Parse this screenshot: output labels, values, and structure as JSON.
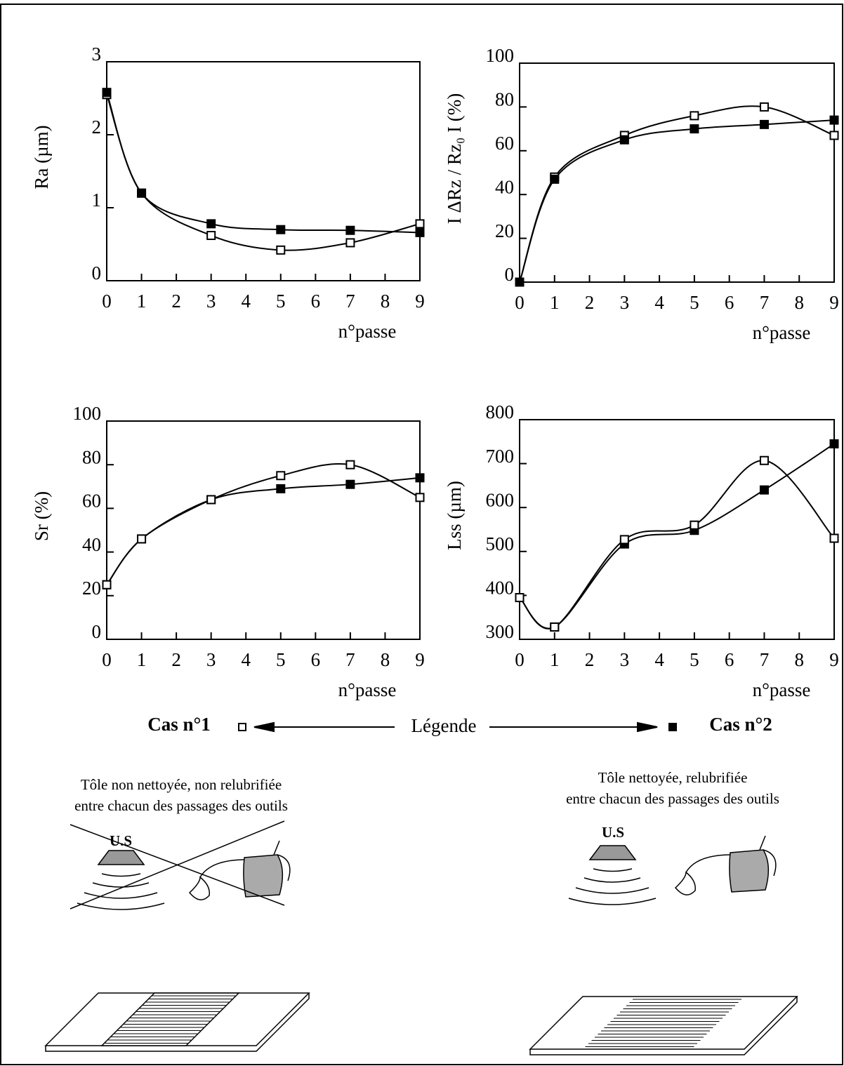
{
  "chart_data": [
    {
      "type": "line",
      "ylabel": "Ra (µm)",
      "xlabel": "n°passe",
      "x": [
        0,
        1,
        3,
        5,
        7,
        9
      ],
      "xlim": [
        0,
        9
      ],
      "xticks": [
        0,
        1,
        2,
        3,
        4,
        5,
        6,
        7,
        8,
        9
      ],
      "ylim": [
        0,
        3
      ],
      "yticks": [
        0,
        1,
        2,
        3
      ],
      "series": [
        {
          "marker": "open",
          "color": "#000000",
          "values": [
            2.55,
            1.2,
            0.62,
            0.42,
            0.52,
            0.78
          ]
        },
        {
          "marker": "filled",
          "color": "#000000",
          "values": [
            2.58,
            1.2,
            0.78,
            0.7,
            0.69,
            0.66
          ]
        }
      ]
    },
    {
      "type": "line",
      "ylabel": "I ΔRz / Rz₀ I (%)",
      "xlabel": "n°passe",
      "x": [
        0,
        1,
        3,
        5,
        7,
        9
      ],
      "xlim": [
        0,
        9
      ],
      "xticks": [
        0,
        1,
        2,
        3,
        4,
        5,
        6,
        7,
        8,
        9
      ],
      "ylim": [
        0,
        100
      ],
      "yticks": [
        0,
        20,
        40,
        60,
        80,
        100
      ],
      "series": [
        {
          "marker": "open",
          "color": "#000000",
          "values": [
            0,
            48,
            67,
            76,
            80,
            67
          ]
        },
        {
          "marker": "filled",
          "color": "#000000",
          "values": [
            0,
            47,
            65,
            70,
            72,
            74
          ]
        }
      ]
    },
    {
      "type": "line",
      "ylabel": "Sr (%)",
      "xlabel": "n°passe",
      "x": [
        0,
        1,
        3,
        5,
        7,
        9
      ],
      "xlim": [
        0,
        9
      ],
      "xticks": [
        0,
        1,
        2,
        3,
        4,
        5,
        6,
        7,
        8,
        9
      ],
      "ylim": [
        0,
        100
      ],
      "yticks": [
        0,
        20,
        40,
        60,
        80,
        100
      ],
      "series": [
        {
          "marker": "filled",
          "color": "#000000",
          "values": [
            25,
            46,
            64,
            69,
            71,
            74
          ]
        },
        {
          "marker": "open",
          "color": "#000000",
          "values": [
            25,
            46,
            64,
            75,
            80,
            65
          ]
        }
      ]
    },
    {
      "type": "line",
      "ylabel": "Lss (µm)",
      "xlabel": "n°passe",
      "x": [
        0,
        1,
        3,
        5,
        7,
        9
      ],
      "xlim": [
        0,
        9
      ],
      "xticks": [
        0,
        1,
        2,
        3,
        4,
        5,
        6,
        7,
        8,
        9
      ],
      "ylim": [
        300,
        800
      ],
      "yticks": [
        300,
        400,
        500,
        600,
        700,
        800
      ],
      "series": [
        {
          "marker": "filled",
          "color": "#000000",
          "values": [
            395,
            328,
            517,
            548,
            640,
            745
          ]
        },
        {
          "marker": "open",
          "color": "#000000",
          "values": [
            395,
            328,
            527,
            560,
            707,
            530
          ]
        }
      ]
    }
  ],
  "legend": {
    "title": "Légende",
    "items": [
      {
        "label": "Cas n°1",
        "marker": "open",
        "description": [
          "Tôle  non nettoyée,  non relubrifiée",
          "entre chacun des passages des outils"
        ],
        "device": "U.S"
      },
      {
        "label": "Cas n°2",
        "marker": "filled",
        "description": [
          "Tôle  nettoyée,  relubrifiée",
          "entre chacun des passages des outils"
        ],
        "device": "U.S"
      }
    ]
  }
}
